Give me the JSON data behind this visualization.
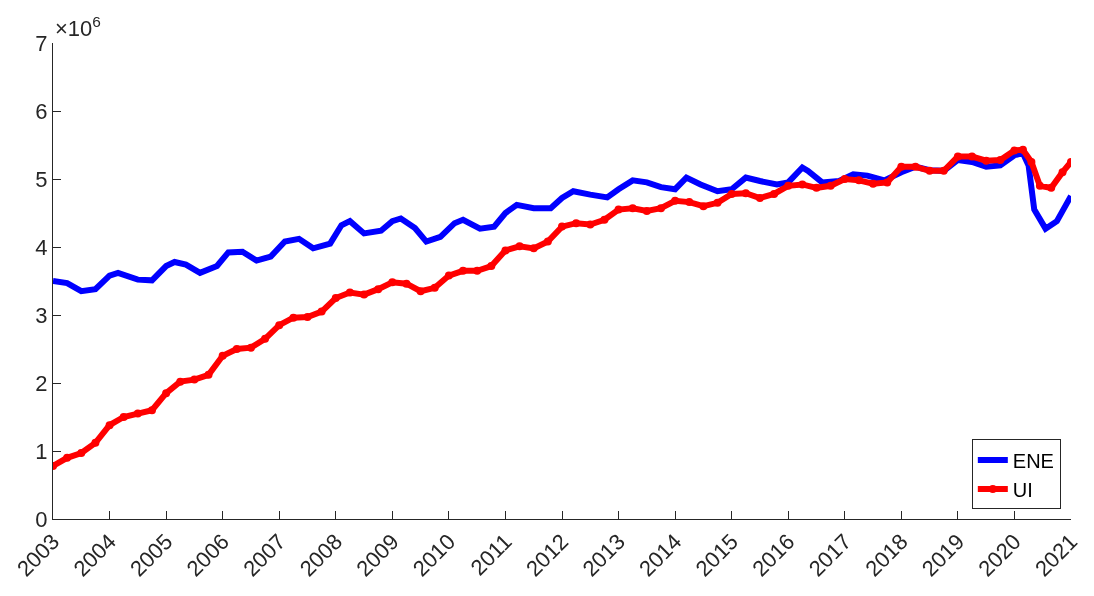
{
  "chart_data": {
    "type": "line",
    "annotations": [
      "×10$^{6}$"
    ],
    "xlim": [
      2003,
      2021
    ],
    "xticks": [
      2003,
      2004,
      2005,
      2006,
      2007,
      2008,
      2009,
      2010,
      2011,
      2012,
      2013,
      2014,
      2015,
      2016,
      2017,
      2018,
      2019,
      2020,
      2021
    ],
    "ylim": [
      0,
      7
    ],
    "yticks": [
      0,
      1,
      2,
      3,
      4,
      5,
      6,
      7
    ],
    "grid": false,
    "legend": "bottom right",
    "line_style": "solid",
    "series": [
      {
        "name": "ENE",
        "color": "#0000ff",
        "marker": "none",
        "x": [
          2003.0,
          2003.25,
          2003.5,
          2003.75,
          2004.0,
          2004.15,
          2004.5,
          2004.75,
          2005.0,
          2005.15,
          2005.35,
          2005.6,
          2005.9,
          2006.1,
          2006.35,
          2006.6,
          2006.85,
          2007.1,
          2007.35,
          2007.6,
          2007.9,
          2008.1,
          2008.25,
          2008.5,
          2008.8,
          2009.0,
          2009.15,
          2009.4,
          2009.6,
          2009.85,
          2010.1,
          2010.25,
          2010.55,
          2010.8,
          2011.0,
          2011.2,
          2011.5,
          2011.8,
          2012.0,
          2012.2,
          2012.5,
          2012.8,
          2013.0,
          2013.25,
          2013.5,
          2013.75,
          2014.0,
          2014.2,
          2014.45,
          2014.75,
          2015.0,
          2015.25,
          2015.5,
          2015.8,
          2016.0,
          2016.25,
          2016.35,
          2016.6,
          2016.9,
          2017.15,
          2017.4,
          2017.7,
          2018.0,
          2018.25,
          2018.5,
          2018.75,
          2019.0,
          2019.25,
          2019.5,
          2019.75,
          2020.0,
          2020.15,
          2020.25,
          2020.35,
          2020.55,
          2020.75,
          2021.0
        ],
        "values": [
          3.5,
          3.47,
          3.35,
          3.38,
          3.58,
          3.62,
          3.52,
          3.51,
          3.72,
          3.78,
          3.74,
          3.62,
          3.72,
          3.92,
          3.93,
          3.8,
          3.86,
          4.08,
          4.12,
          3.98,
          4.05,
          4.32,
          4.38,
          4.2,
          4.24,
          4.38,
          4.42,
          4.28,
          4.08,
          4.15,
          4.35,
          4.4,
          4.27,
          4.3,
          4.5,
          4.62,
          4.57,
          4.57,
          4.72,
          4.82,
          4.77,
          4.73,
          4.85,
          4.98,
          4.95,
          4.88,
          4.85,
          5.02,
          4.92,
          4.82,
          4.85,
          5.02,
          4.97,
          4.92,
          4.95,
          5.17,
          5.12,
          4.95,
          4.97,
          5.07,
          5.05,
          4.98,
          5.1,
          5.18,
          5.13,
          5.12,
          5.28,
          5.25,
          5.18,
          5.2,
          5.35,
          5.38,
          5.2,
          4.55,
          4.27,
          4.38,
          4.75
        ]
      },
      {
        "name": "UI",
        "color": "#ff0000",
        "marker": "circle",
        "x": [
          2003.0,
          2003.25,
          2003.5,
          2003.75,
          2004.0,
          2004.25,
          2004.5,
          2004.75,
          2005.0,
          2005.25,
          2005.5,
          2005.75,
          2006.0,
          2006.25,
          2006.5,
          2006.75,
          2007.0,
          2007.25,
          2007.5,
          2007.75,
          2008.0,
          2008.25,
          2008.5,
          2008.75,
          2009.0,
          2009.25,
          2009.5,
          2009.75,
          2010.0,
          2010.25,
          2010.5,
          2010.75,
          2011.0,
          2011.25,
          2011.5,
          2011.75,
          2012.0,
          2012.25,
          2012.5,
          2012.75,
          2013.0,
          2013.25,
          2013.5,
          2013.75,
          2014.0,
          2014.25,
          2014.5,
          2014.75,
          2015.0,
          2015.25,
          2015.5,
          2015.75,
          2016.0,
          2016.25,
          2016.5,
          2016.75,
          2017.0,
          2017.25,
          2017.5,
          2017.75,
          2018.0,
          2018.25,
          2018.5,
          2018.75,
          2019.0,
          2019.25,
          2019.5,
          2019.75,
          2020.0,
          2020.15,
          2020.3,
          2020.45,
          2020.65,
          2020.85,
          2021.0
        ],
        "values": [
          0.78,
          0.9,
          0.97,
          1.12,
          1.38,
          1.5,
          1.55,
          1.6,
          1.85,
          2.02,
          2.05,
          2.12,
          2.4,
          2.5,
          2.52,
          2.65,
          2.85,
          2.96,
          2.97,
          3.05,
          3.25,
          3.33,
          3.3,
          3.38,
          3.48,
          3.46,
          3.35,
          3.4,
          3.58,
          3.65,
          3.65,
          3.72,
          3.95,
          4.01,
          3.98,
          4.08,
          4.3,
          4.35,
          4.33,
          4.4,
          4.55,
          4.57,
          4.53,
          4.57,
          4.68,
          4.66,
          4.6,
          4.65,
          4.78,
          4.79,
          4.72,
          4.78,
          4.9,
          4.92,
          4.87,
          4.9,
          5.0,
          4.98,
          4.93,
          4.95,
          5.18,
          5.18,
          5.12,
          5.12,
          5.33,
          5.33,
          5.27,
          5.28,
          5.42,
          5.43,
          5.25,
          4.9,
          4.87,
          5.1,
          5.25
        ]
      }
    ]
  }
}
